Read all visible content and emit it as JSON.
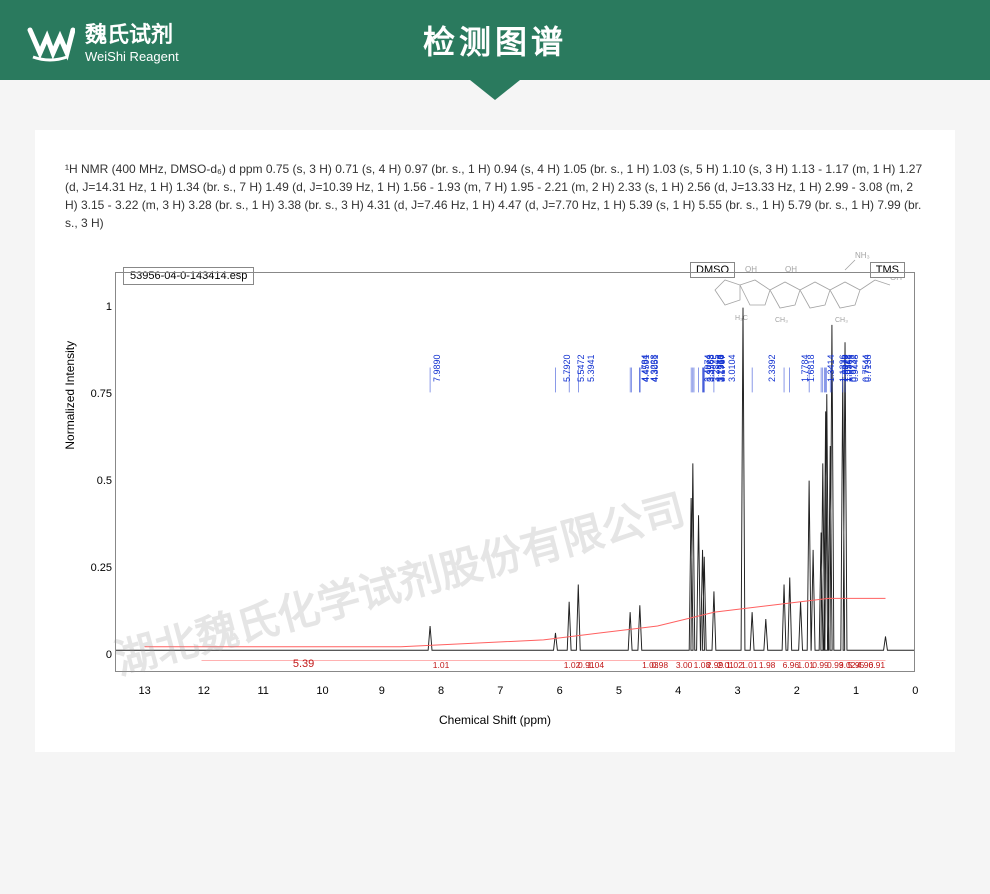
{
  "header": {
    "logo_cn": "魏氏试剂",
    "logo_en": "WeiShi Reagent",
    "title": "检测图谱"
  },
  "nmr_description": "¹H NMR (400 MHz, DMSO-d₆) d ppm 0.75 (s, 3 H) 0.71 (s, 4 H) 0.97 (br. s., 1 H) 0.94 (s, 4 H) 1.05 (br. s., 1 H) 1.03 (s, 5 H) 1.10 (s, 3 H) 1.13 - 1.17 (m, 1 H) 1.27 (d, J=14.31 Hz, 1 H) 1.34 (br. s., 7 H) 1.49 (d, J=10.39 Hz, 1 H) 1.56 - 1.93 (m, 7 H) 1.95 - 2.21 (m, 2 H) 2.33 (s, 1 H) 2.56 (d, J=13.33 Hz, 1 H) 2.99 - 3.08 (m, 2 H) 3.15 - 3.22 (m, 3 H) 3.28 (br. s., 1 H) 3.38 (br. s., 3 H) 4.31 (d, J=7.46 Hz, 1 H) 4.47 (d, J=7.70 Hz, 1 H) 5.39 (s, 1 H) 5.55 (br. s., 1 H) 5.79 (br. s., 1 H) 7.99 (br. s., 3 H)",
  "chart": {
    "filename": "53956-04-0-143414.esp",
    "dmso_label": "DMSO",
    "tms_label": "TMS",
    "y_axis_label": "Normalized Intensity",
    "x_axis_label": "Chemical Shift (ppm)",
    "y_ticks": [
      0,
      0.25,
      0.5,
      0.75,
      1.0
    ],
    "x_ticks": [
      0,
      1,
      2,
      3,
      4,
      5,
      6,
      7,
      8,
      9,
      10,
      11,
      12,
      13
    ],
    "x_min": -0.5,
    "x_max": 13.5,
    "y_min": -0.05,
    "y_max": 1.1,
    "peak_labels": [
      {
        "ppm": 7.99,
        "label": "7.9890"
      },
      {
        "ppm": 5.79,
        "label": "5.7920"
      },
      {
        "ppm": 5.55,
        "label": "5.5472"
      },
      {
        "ppm": 5.39,
        "label": "5.3941"
      },
      {
        "ppm": 4.48,
        "label": "4.4784"
      },
      {
        "ppm": 4.46,
        "label": "4.4591"
      },
      {
        "ppm": 4.32,
        "label": "4.3238"
      },
      {
        "ppm": 4.305,
        "label": "4.3051"
      },
      {
        "ppm": 3.41,
        "label": "3.4074"
      },
      {
        "ppm": 3.38,
        "label": "3.3783"
      },
      {
        "ppm": 3.36,
        "label": "3.3568"
      },
      {
        "ppm": 3.28,
        "label": "3.2845"
      },
      {
        "ppm": 3.21,
        "label": "3.2136"
      },
      {
        "ppm": 3.2,
        "label": "3.1968"
      },
      {
        "ppm": 3.19,
        "label": "3.1910"
      },
      {
        "ppm": 3.18,
        "label": "3.1767"
      },
      {
        "ppm": 3.01,
        "label": "3.0104"
      },
      {
        "ppm": 2.34,
        "label": "2.3392"
      },
      {
        "ppm": 1.78,
        "label": "1.7784"
      },
      {
        "ppm": 1.68,
        "label": "1.6818"
      },
      {
        "ppm": 1.34,
        "label": "1.3414"
      },
      {
        "ppm": 1.13,
        "label": "1.1336"
      },
      {
        "ppm": 1.1,
        "label": "1.0973"
      },
      {
        "ppm": 1.07,
        "label": "1.0722"
      },
      {
        "ppm": 1.05,
        "label": "1.0548"
      },
      {
        "ppm": 1.04,
        "label": "1.0361"
      },
      {
        "ppm": 0.97,
        "label": "0.9732"
      },
      {
        "ppm": 0.94,
        "label": "0.9448"
      },
      {
        "ppm": 0.75,
        "label": "0.7544"
      },
      {
        "ppm": 0.71,
        "label": "0.7138"
      }
    ],
    "integrals": [
      {
        "ppm": 8.0,
        "val": "1.01"
      },
      {
        "ppm": 5.79,
        "val": "1.02"
      },
      {
        "ppm": 5.55,
        "val": "0.91"
      },
      {
        "ppm": 5.39,
        "val": "1.04"
      },
      {
        "ppm": 4.47,
        "val": "1.03"
      },
      {
        "ppm": 4.31,
        "val": "0.98"
      },
      {
        "ppm": 3.9,
        "val": "3.00"
      },
      {
        "ppm": 3.6,
        "val": "1.08"
      },
      {
        "ppm": 3.38,
        "val": "2.99"
      },
      {
        "ppm": 3.2,
        "val": "2.01"
      },
      {
        "ppm": 3.05,
        "val": "1.02"
      },
      {
        "ppm": 2.8,
        "val": "1.01"
      },
      {
        "ppm": 2.5,
        "val": "1.98"
      },
      {
        "ppm": 2.1,
        "val": "6.96"
      },
      {
        "ppm": 1.85,
        "val": "1.01"
      },
      {
        "ppm": 1.6,
        "val": "0.99"
      },
      {
        "ppm": 1.35,
        "val": "0.99"
      },
      {
        "ppm": 1.15,
        "val": "3.02"
      },
      {
        "ppm": 1.0,
        "val": "5.95"
      },
      {
        "ppm": 0.85,
        "val": "4.90"
      },
      {
        "ppm": 0.65,
        "val": "6.91"
      }
    ],
    "integral_large": {
      "ppm": 10.5,
      "val": "5.39"
    },
    "peaks": [
      {
        "ppm": 7.99,
        "h": 0.08
      },
      {
        "ppm": 5.79,
        "h": 0.06
      },
      {
        "ppm": 5.55,
        "h": 0.15
      },
      {
        "ppm": 5.39,
        "h": 0.2
      },
      {
        "ppm": 4.48,
        "h": 0.12
      },
      {
        "ppm": 4.31,
        "h": 0.14
      },
      {
        "ppm": 3.41,
        "h": 0.45
      },
      {
        "ppm": 3.38,
        "h": 0.55
      },
      {
        "ppm": 3.28,
        "h": 0.4
      },
      {
        "ppm": 3.21,
        "h": 0.3
      },
      {
        "ppm": 3.18,
        "h": 0.28
      },
      {
        "ppm": 3.01,
        "h": 0.18
      },
      {
        "ppm": 2.5,
        "h": 1.0
      },
      {
        "ppm": 2.34,
        "h": 0.12
      },
      {
        "ppm": 2.1,
        "h": 0.1
      },
      {
        "ppm": 1.78,
        "h": 0.2
      },
      {
        "ppm": 1.68,
        "h": 0.22
      },
      {
        "ppm": 1.49,
        "h": 0.15
      },
      {
        "ppm": 1.34,
        "h": 0.5
      },
      {
        "ppm": 1.27,
        "h": 0.3
      },
      {
        "ppm": 1.13,
        "h": 0.35
      },
      {
        "ppm": 1.1,
        "h": 0.55
      },
      {
        "ppm": 1.05,
        "h": 0.7
      },
      {
        "ppm": 1.03,
        "h": 0.75
      },
      {
        "ppm": 0.97,
        "h": 0.6
      },
      {
        "ppm": 0.94,
        "h": 0.95
      },
      {
        "ppm": 0.75,
        "h": 0.8
      },
      {
        "ppm": 0.71,
        "h": 0.9
      },
      {
        "ppm": 0.0,
        "h": 0.05
      }
    ],
    "colors": {
      "spectrum": "#202020",
      "integral": "#ff6060",
      "peak_label": "#1030d0",
      "integral_text": "#c01818",
      "background": "#ffffff",
      "border": "#888888"
    },
    "watermark": "湖北魏氏化学试剂股份有限公司"
  }
}
